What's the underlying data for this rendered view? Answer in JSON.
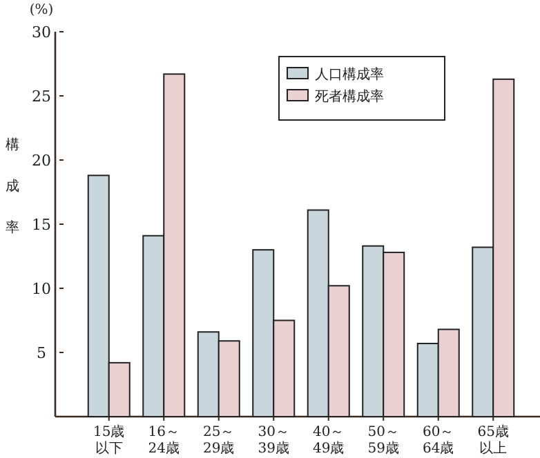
{
  "chart_data": {
    "type": "bar",
    "ylabel": "構成率",
    "annotations": [
      "(%)"
    ],
    "categories": [
      "15歳以下",
      "16～24歳",
      "25～29歳",
      "30～39歳",
      "40～49歳",
      "50～59歳",
      "60～64歳",
      "65歳以上"
    ],
    "series": [
      {
        "name": "人口構成率",
        "color": "#c9d6dc",
        "values": [
          18.8,
          14.1,
          6.6,
          13.0,
          16.1,
          13.3,
          5.7,
          13.2
        ]
      },
      {
        "name": "死者構成率",
        "color": "#ebd0d1",
        "values": [
          4.2,
          26.7,
          5.9,
          7.5,
          10.2,
          12.8,
          6.8,
          26.3
        ]
      }
    ],
    "ylim": [
      0,
      30
    ],
    "yticks": [
      5,
      10,
      15,
      20,
      25,
      30
    ],
    "legend": "top"
  }
}
